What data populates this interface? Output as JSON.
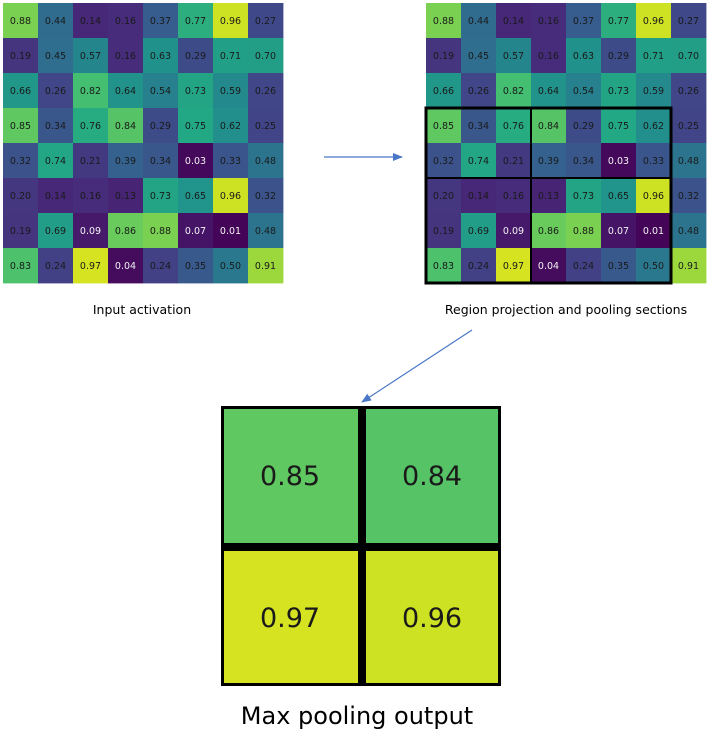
{
  "input_grid": {
    "caption": "Input activation",
    "values": [
      [
        "0.88",
        "0.44",
        "0.14",
        "0.16",
        "0.37",
        "0.77",
        "0.96",
        "0.27"
      ],
      [
        "0.19",
        "0.45",
        "0.57",
        "0.16",
        "0.63",
        "0.29",
        "0.71",
        "0.70"
      ],
      [
        "0.66",
        "0.26",
        "0.82",
        "0.64",
        "0.54",
        "0.73",
        "0.59",
        "0.26"
      ],
      [
        "0.85",
        "0.34",
        "0.76",
        "0.84",
        "0.29",
        "0.75",
        "0.62",
        "0.25"
      ],
      [
        "0.32",
        "0.74",
        "0.21",
        "0.39",
        "0.34",
        "0.03",
        "0.33",
        "0.48"
      ],
      [
        "0.20",
        "0.14",
        "0.16",
        "0.13",
        "0.73",
        "0.65",
        "0.96",
        "0.32"
      ],
      [
        "0.19",
        "0.69",
        "0.09",
        "0.86",
        "0.88",
        "0.07",
        "0.01",
        "0.48"
      ],
      [
        "0.83",
        "0.24",
        "0.97",
        "0.04",
        "0.24",
        "0.35",
        "0.50",
        "0.91"
      ]
    ]
  },
  "projection_grid": {
    "caption": "Region projection and pooling sections",
    "region": {
      "row_start": 3,
      "row_end": 7,
      "col_start": 0,
      "col_end": 6
    },
    "sections": [
      {
        "row_start": 3,
        "row_end": 4,
        "col_start": 0,
        "col_end": 2
      },
      {
        "row_start": 3,
        "row_end": 4,
        "col_start": 3,
        "col_end": 6
      },
      {
        "row_start": 5,
        "row_end": 7,
        "col_start": 0,
        "col_end": 2
      },
      {
        "row_start": 5,
        "row_end": 7,
        "col_start": 3,
        "col_end": 6
      }
    ]
  },
  "pool_output": {
    "caption": "Max pooling output",
    "values": [
      [
        "0.85",
        "0.84"
      ],
      [
        "0.97",
        "0.96"
      ]
    ]
  },
  "colors": {
    "arrow": "#4a78c6",
    "border": "#000000",
    "text_dark": "#1a1a1a",
    "text_light": "#f2f2f2"
  }
}
